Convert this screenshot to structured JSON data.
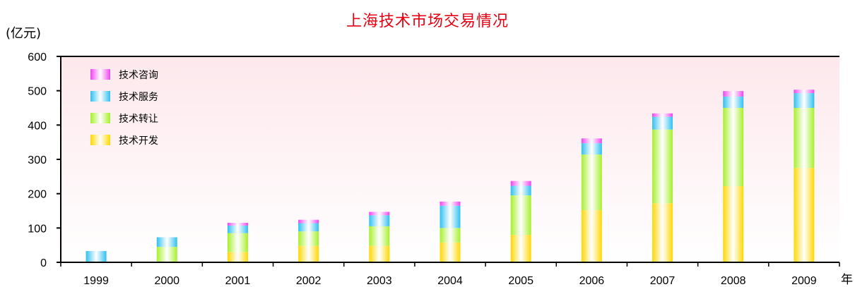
{
  "chart_data": {
    "type": "bar",
    "stacked": true,
    "title": "上海技术市场交易情况",
    "ylabel": "(亿元)",
    "xlabel": "年",
    "ylim": [
      0,
      600
    ],
    "yticks": [
      "0",
      "100",
      "200",
      "300",
      "400",
      "500",
      "600"
    ],
    "categories": [
      "1999",
      "2000",
      "2001",
      "2002",
      "2003",
      "2004",
      "2005",
      "2006",
      "2007",
      "2008",
      "2009"
    ],
    "series": [
      {
        "name": "技术开发",
        "color": "#ffd700",
        "values": [
          0,
          0,
          30,
          48,
          48,
          58,
          80,
          152,
          172,
          222,
          275
        ]
      },
      {
        "name": "技术转让",
        "color": "#a6f02a",
        "values": [
          0,
          45,
          55,
          42,
          57,
          42,
          115,
          162,
          215,
          228,
          175
        ]
      },
      {
        "name": "技术服务",
        "color": "#2ec0f0",
        "values": [
          33,
          28,
          22,
          24,
          32,
          65,
          28,
          33,
          37,
          33,
          43
        ]
      },
      {
        "name": "技术咨询",
        "color": "#ee44ee",
        "values": [
          0,
          0,
          8,
          10,
          10,
          12,
          14,
          14,
          10,
          16,
          10
        ]
      }
    ],
    "legend_order": [
      "技术咨询",
      "技术服务",
      "技术转让",
      "技术开发"
    ],
    "legend_position": "top-left",
    "grid": false,
    "plot_background": "#fde8ec"
  }
}
